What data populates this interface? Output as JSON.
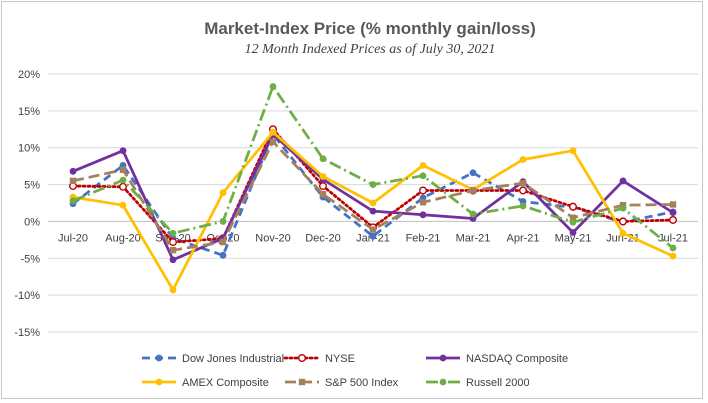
{
  "chart_data": {
    "type": "line",
    "title": "Market-Index Price (% monthly gain/loss)",
    "subtitle": "12 Month Indexed Prices as of July 30, 2021",
    "categories": [
      "Jul-20",
      "Aug-20",
      "Sep-20",
      "Oct-20",
      "Nov-20",
      "Dec-20",
      "Jan-21",
      "Feb-21",
      "Mar-21",
      "Apr-21",
      "May-21",
      "Jun-21",
      "Jul-21"
    ],
    "ylim": [
      -15,
      20
    ],
    "yticks": [
      20,
      15,
      10,
      5,
      0,
      -5,
      -10,
      -15
    ],
    "ytick_labels": [
      "20%",
      "15%",
      "10%",
      "5%",
      "0%",
      "-5%",
      "-10%",
      "-15%"
    ],
    "grid": true,
    "legend_position": "bottom",
    "series": [
      {
        "name": "Dow Jones Industrial",
        "color": "#4472C4",
        "dash": "dash",
        "marker": "circle-filled",
        "values": [
          2.4,
          7.6,
          -2.3,
          -4.6,
          11.8,
          3.3,
          -2.0,
          3.2,
          6.6,
          2.7,
          1.9,
          -0.1,
          1.3
        ]
      },
      {
        "name": "NYSE",
        "color": "#C00000",
        "dash": "dot",
        "marker": "circle-open",
        "values": [
          4.8,
          4.7,
          -2.8,
          -2.3,
          12.5,
          4.8,
          -0.8,
          4.2,
          4.2,
          4.2,
          2.0,
          0.0,
          0.2
        ]
      },
      {
        "name": "NASDAQ Composite",
        "color": "#7030A0",
        "dash": "solid",
        "marker": "circle-filled",
        "values": [
          6.8,
          9.6,
          -5.2,
          -2.3,
          11.8,
          5.7,
          1.4,
          0.9,
          0.4,
          5.4,
          -1.5,
          5.5,
          1.2
        ]
      },
      {
        "name": "AMEX Composite",
        "color": "#FFC000",
        "dash": "solid",
        "marker": "circle-filled",
        "values": [
          3.3,
          2.2,
          -9.3,
          3.9,
          12.1,
          6.1,
          2.5,
          7.6,
          4.3,
          8.4,
          9.6,
          -1.6,
          -4.7
        ]
      },
      {
        "name": "S&P 500 Index",
        "color": "#A5805A",
        "dash": "longdash",
        "marker": "square",
        "values": [
          5.5,
          7.0,
          -3.9,
          -2.8,
          10.8,
          3.7,
          -1.1,
          2.6,
          4.2,
          5.2,
          0.5,
          2.2,
          2.3
        ]
      },
      {
        "name": "Russell 2000",
        "color": "#70AD47",
        "dash": "dashdot",
        "marker": "circle-filled",
        "values": [
          2.8,
          5.6,
          -1.6,
          0.0,
          18.3,
          8.5,
          5.0,
          6.2,
          1.0,
          2.1,
          -0.1,
          1.8,
          -3.6
        ]
      }
    ]
  }
}
